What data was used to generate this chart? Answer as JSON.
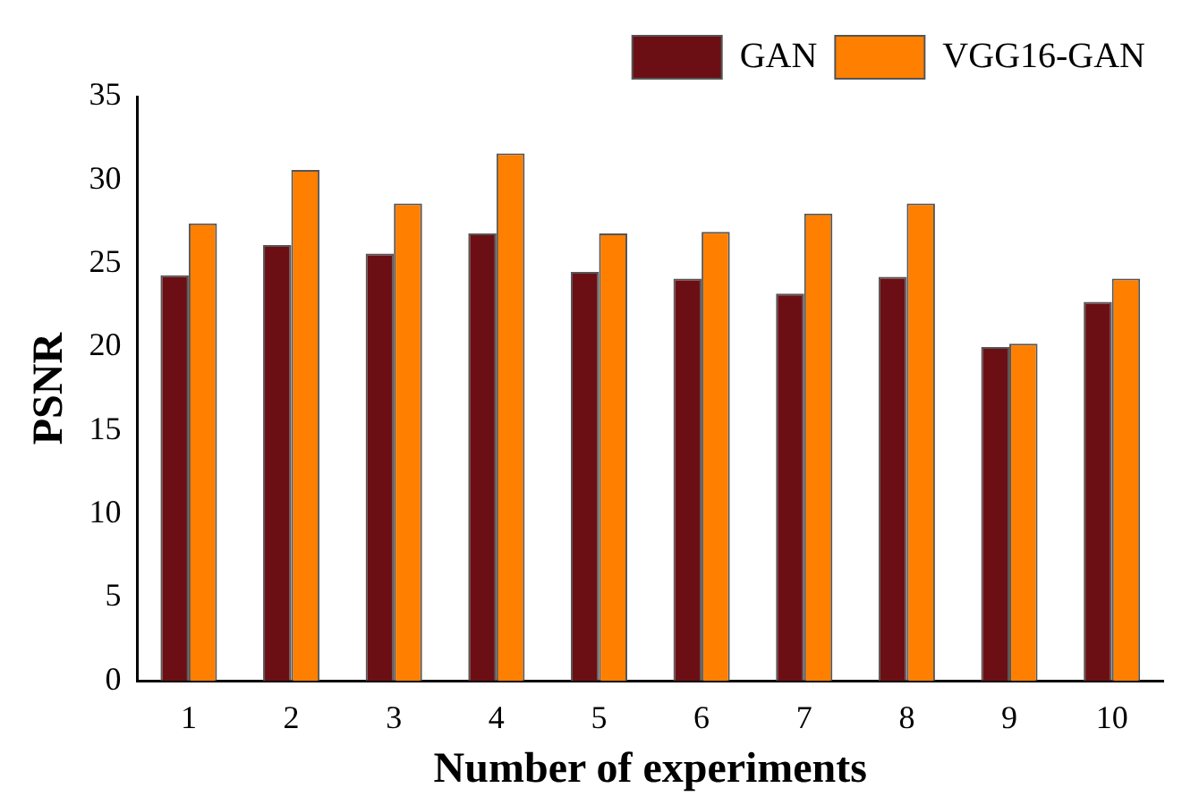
{
  "chart_data": {
    "type": "bar",
    "xlabel": "Number of experiments",
    "ylabel": "PSNR",
    "categories": [
      "1",
      "2",
      "3",
      "4",
      "5",
      "6",
      "7",
      "8",
      "9",
      "10"
    ],
    "series": [
      {
        "name": "GAN",
        "color": "#6b0f14",
        "values": [
          24.3,
          26.1,
          25.6,
          26.8,
          24.5,
          24.1,
          23.2,
          24.2,
          20.0,
          22.7
        ]
      },
      {
        "name": "VGG16-GAN",
        "color": "#ff7f00",
        "values": [
          27.4,
          30.6,
          28.6,
          31.6,
          26.8,
          26.9,
          28.0,
          28.6,
          20.2,
          24.1
        ]
      }
    ],
    "ylim": [
      0,
      35
    ],
    "yticks": [
      0,
      5,
      10,
      15,
      20,
      25,
      30,
      35
    ],
    "grid": false,
    "legend": "top right"
  }
}
